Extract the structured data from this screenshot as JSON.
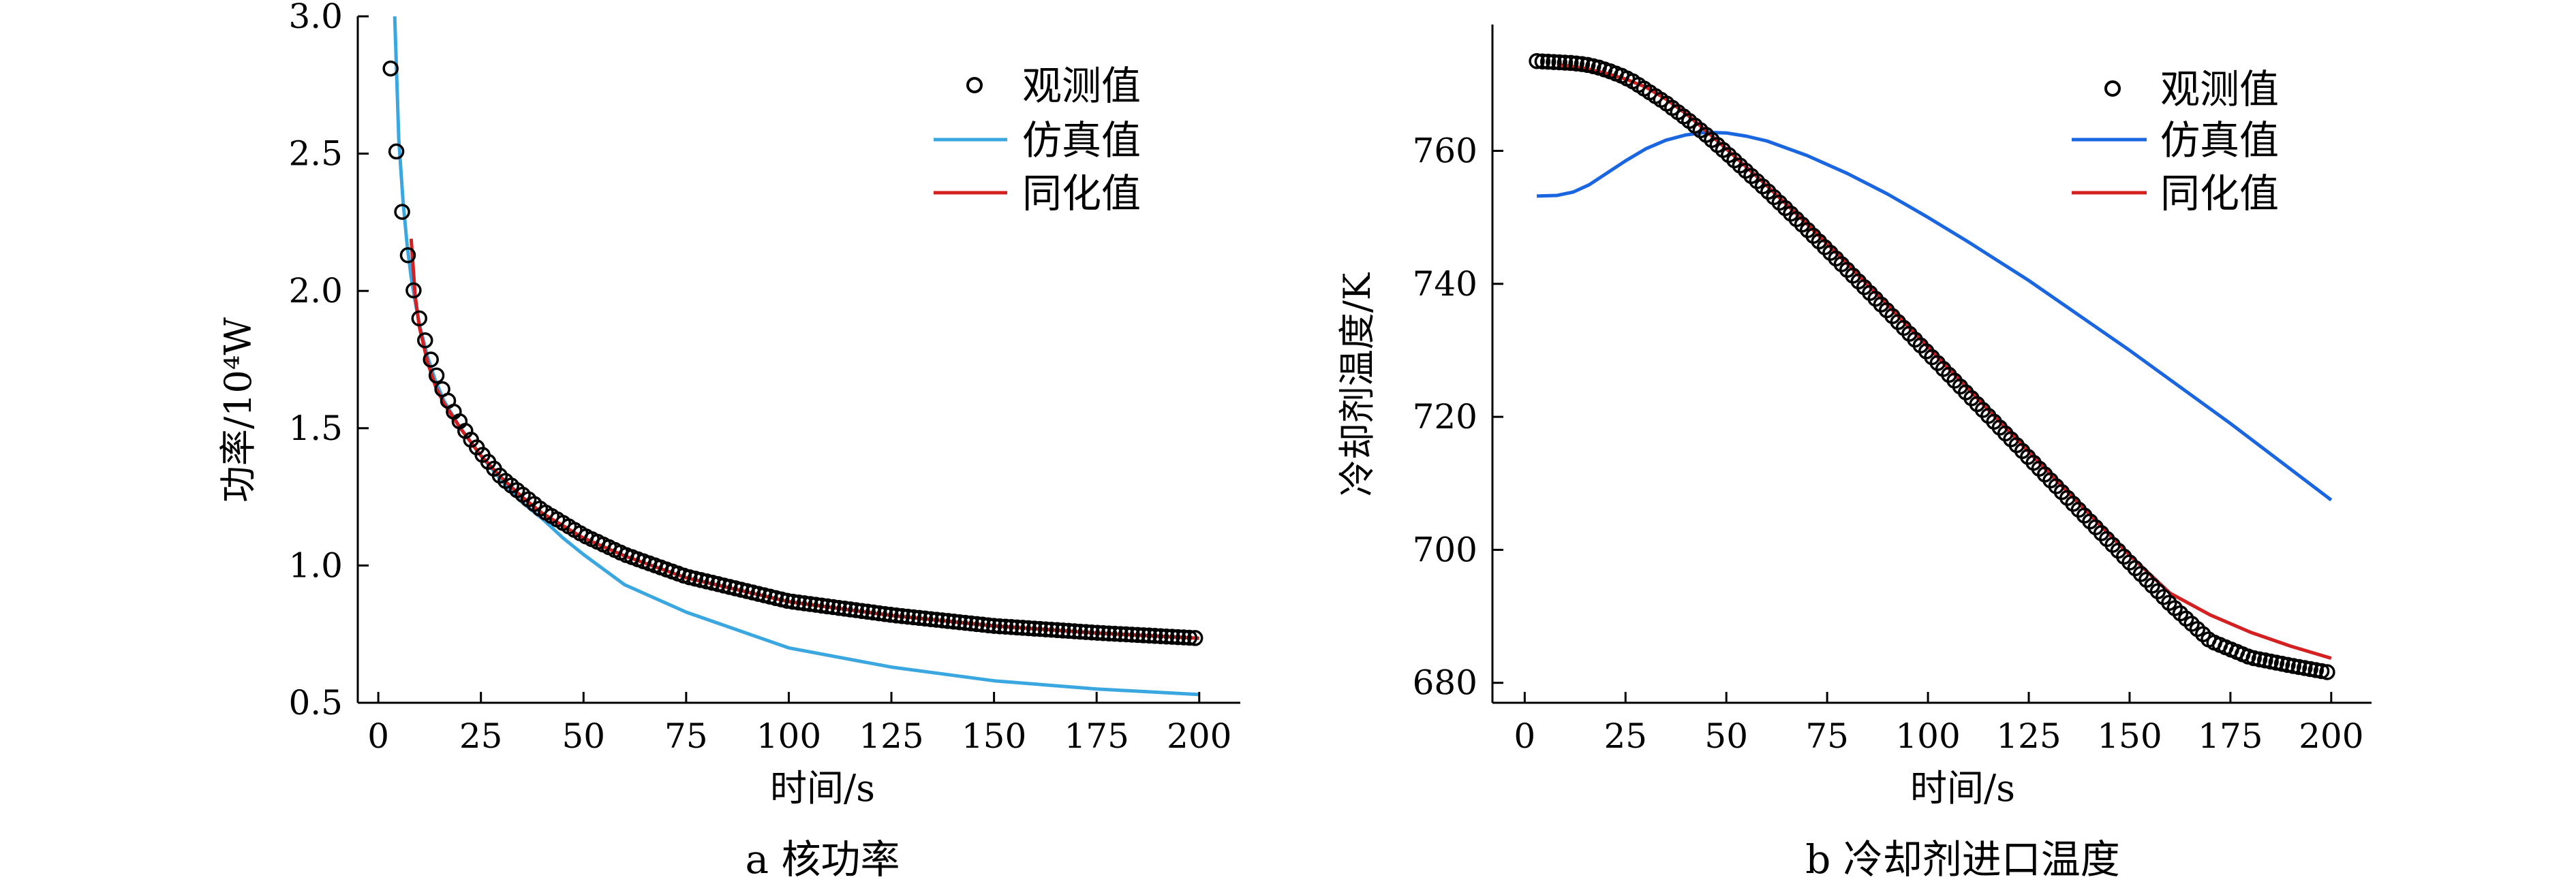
{
  "chart_data": [
    {
      "type": "line",
      "caption": "a  核功率",
      "xlabel": "时间/s",
      "ylabel": "功率/10⁴W",
      "xlim": [
        -5,
        210
      ],
      "ylim": [
        0.5,
        3.0
      ],
      "xticks": [
        0,
        25,
        50,
        75,
        100,
        125,
        150,
        175,
        200
      ],
      "yticks": [
        0.5,
        1.0,
        1.5,
        2.0,
        2.5,
        3.0
      ],
      "xtick_labels": [
        "0",
        "25",
        "50",
        "75",
        "100",
        "125",
        "150",
        "175",
        "200"
      ],
      "ytick_labels": [
        "0.5",
        "1.0",
        "1.5",
        "2.0",
        "2.5",
        "3.0"
      ],
      "grid": false,
      "legend_position": "top-right",
      "series": [
        {
          "name": "观测值",
          "style": "markers",
          "color": "#000000",
          "x": [
            3,
            4,
            5,
            6,
            7,
            8,
            9,
            10,
            11,
            12,
            13,
            14,
            15,
            16,
            17,
            18,
            20,
            22,
            25,
            30,
            35,
            40,
            50,
            60,
            75,
            100,
            125,
            150,
            175,
            200
          ],
          "y": [
            2.81,
            2.58,
            2.4,
            2.26,
            2.15,
            2.05,
            1.97,
            1.9,
            1.84,
            1.79,
            1.74,
            1.7,
            1.66,
            1.63,
            1.6,
            1.57,
            1.52,
            1.47,
            1.41,
            1.32,
            1.26,
            1.2,
            1.11,
            1.04,
            0.96,
            0.87,
            0.82,
            0.78,
            0.755,
            0.735
          ]
        },
        {
          "name": "仿真值",
          "style": "line",
          "color": "#3ba7e0",
          "x": [
            4,
            5,
            6,
            7,
            8,
            9,
            10,
            12,
            14,
            16,
            20,
            25,
            30,
            35,
            40,
            45,
            50,
            60,
            75,
            100,
            125,
            150,
            175,
            200
          ],
          "y": [
            3.0,
            2.55,
            2.33,
            2.17,
            2.05,
            1.96,
            1.88,
            1.76,
            1.67,
            1.6,
            1.5,
            1.4,
            1.31,
            1.23,
            1.17,
            1.1,
            1.04,
            0.93,
            0.83,
            0.7,
            0.63,
            0.58,
            0.55,
            0.53
          ]
        },
        {
          "name": "同化值",
          "style": "line",
          "color": "#d42020",
          "x": [
            8,
            9,
            10,
            12,
            14,
            16,
            20,
            25,
            30,
            35,
            40,
            50,
            60,
            75,
            100,
            125,
            150,
            175,
            200
          ],
          "y": [
            2.19,
            1.98,
            1.87,
            1.74,
            1.65,
            1.59,
            1.5,
            1.4,
            1.32,
            1.25,
            1.19,
            1.1,
            1.035,
            0.955,
            0.868,
            0.818,
            0.78,
            0.754,
            0.735
          ]
        }
      ]
    },
    {
      "type": "line",
      "caption": "b  冷却剂进口温度",
      "xlabel": "时间/s",
      "ylabel": "冷却剂温度/K",
      "xlim": [
        -8,
        210
      ],
      "ylim": [
        677,
        779
      ],
      "xticks": [
        0,
        25,
        50,
        75,
        100,
        125,
        150,
        175,
        200
      ],
      "yticks": [
        680,
        700,
        720,
        740,
        760
      ],
      "xtick_labels": [
        "0",
        "25",
        "50",
        "75",
        "100",
        "125",
        "150",
        "175",
        "200"
      ],
      "ytick_labels": [
        "680",
        "700",
        "720",
        "740",
        "760"
      ],
      "grid": false,
      "legend_position": "top-right",
      "series": [
        {
          "name": "观测值",
          "style": "markers",
          "color": "#000000",
          "x": [
            3,
            6,
            9,
            12,
            15,
            18,
            21,
            24,
            27,
            30,
            35,
            40,
            45,
            50,
            60,
            70,
            80,
            90,
            100,
            110,
            120,
            130,
            140,
            150,
            160,
            170,
            180,
            190,
            200
          ],
          "y": [
            773.5,
            773.4,
            773.3,
            773.2,
            773.0,
            772.6,
            772.0,
            771.3,
            770.4,
            769.2,
            767.2,
            764.9,
            762.4,
            759.7,
            754.1,
            748.2,
            742.1,
            735.9,
            729.6,
            723.3,
            717.0,
            710.7,
            704.4,
            698.1,
            691.9,
            686.3,
            683.8,
            682.6,
            681.5
          ]
        },
        {
          "name": "仿真值",
          "style": "line",
          "color": "#1a66e0",
          "x": [
            3,
            8,
            12,
            16,
            20,
            25,
            30,
            35,
            40,
            45,
            50,
            55,
            60,
            70,
            80,
            90,
            100,
            110,
            125,
            150,
            175,
            200
          ],
          "y": [
            753.2,
            753.3,
            753.8,
            754.9,
            756.5,
            758.5,
            760.3,
            761.6,
            762.4,
            762.8,
            762.7,
            762.2,
            761.5,
            759.3,
            756.6,
            753.5,
            750.0,
            746.3,
            740.5,
            730.0,
            719.0,
            707.5
          ]
        },
        {
          "name": "同化值",
          "style": "line",
          "color": "#d42020",
          "x": [
            8,
            15,
            20,
            25,
            30,
            35,
            40,
            45,
            50,
            60,
            70,
            80,
            90,
            100,
            110,
            120,
            130,
            140,
            150,
            160,
            170,
            180,
            190,
            200
          ],
          "y": [
            773.0,
            772.4,
            771.7,
            770.8,
            769.6,
            767.8,
            765.6,
            763.0,
            760.3,
            754.8,
            749.0,
            743.0,
            736.8,
            730.5,
            724.2,
            717.9,
            711.6,
            705.4,
            699.2,
            693.5,
            690.2,
            687.6,
            685.5,
            683.7
          ]
        }
      ]
    }
  ]
}
